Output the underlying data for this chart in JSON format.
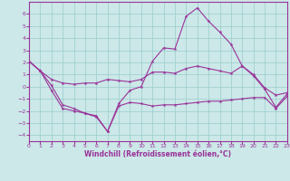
{
  "xlabel": "Windchill (Refroidissement éolien,°C)",
  "background_color": "#cce8e8",
  "grid_color": "#99cccc",
  "line_color": "#993399",
  "xlim": [
    0,
    23
  ],
  "ylim": [
    -4.5,
    7.0
  ],
  "xticks": [
    0,
    1,
    2,
    3,
    4,
    5,
    6,
    7,
    8,
    9,
    10,
    11,
    12,
    13,
    14,
    15,
    16,
    17,
    18,
    19,
    20,
    21,
    22,
    23
  ],
  "yticks": [
    -4,
    -3,
    -2,
    -1,
    0,
    1,
    2,
    3,
    4,
    5,
    6
  ],
  "line1_y": [
    2.1,
    1.3,
    0.1,
    -1.5,
    -1.8,
    -2.2,
    -2.5,
    -3.7,
    -1.4,
    -0.3,
    0.0,
    2.1,
    3.2,
    3.1,
    5.8,
    6.5,
    5.4,
    4.5,
    3.5,
    1.7,
    0.9,
    -0.2,
    -1.7,
    -0.6
  ],
  "line2_y": [
    2.1,
    1.3,
    0.6,
    0.3,
    0.2,
    0.3,
    0.3,
    0.6,
    0.5,
    0.4,
    0.6,
    1.2,
    1.2,
    1.1,
    1.5,
    1.7,
    1.5,
    1.3,
    1.1,
    1.7,
    1.0,
    -0.1,
    -0.7,
    -0.5
  ],
  "line3_y": [
    2.1,
    1.3,
    -0.3,
    -1.8,
    -2.0,
    -2.2,
    -2.4,
    -3.7,
    -1.6,
    -1.3,
    -1.4,
    -1.6,
    -1.5,
    -1.5,
    -1.4,
    -1.3,
    -1.2,
    -1.2,
    -1.1,
    -1.0,
    -0.9,
    -0.9,
    -1.8,
    -0.8
  ]
}
